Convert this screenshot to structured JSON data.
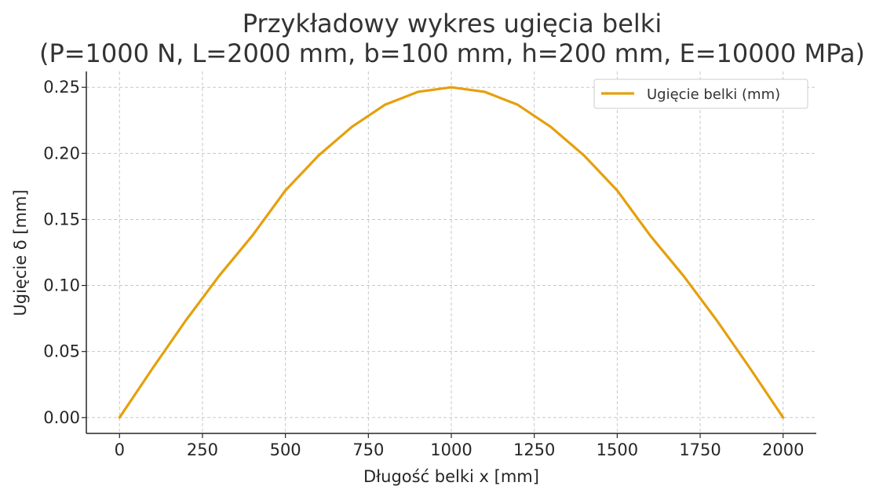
{
  "chart_data": {
    "type": "line",
    "title_lines": [
      "Przykładowy wykres ugięcia belki",
      "(P=1000 N, L=2000 mm, b=100 mm, h=200 mm, E=10000 MPa)"
    ],
    "xlabel": "Długość belki x [mm]",
    "ylabel": "Ugięcie δ [mm]",
    "xlim": [
      -100,
      2100
    ],
    "ylim": [
      -0.012,
      0.262
    ],
    "xticks": [
      0,
      250,
      500,
      750,
      1000,
      1250,
      1500,
      1750,
      2000
    ],
    "xtick_labels": [
      "0",
      "250",
      "500",
      "750",
      "1000",
      "1250",
      "1500",
      "1750",
      "2000"
    ],
    "yticks": [
      0.0,
      0.05,
      0.1,
      0.15,
      0.2,
      0.25
    ],
    "ytick_labels": [
      "0.00",
      "0.05",
      "0.10",
      "0.15",
      "0.20",
      "0.25"
    ],
    "grid": true,
    "legend_position": "top-right",
    "series": [
      {
        "name": "Ugięcie belki (mm)",
        "color": "#e5a00d",
        "x": [
          0,
          100,
          200,
          300,
          400,
          500,
          600,
          700,
          800,
          900,
          1000,
          1100,
          1200,
          1300,
          1400,
          1500,
          1600,
          1700,
          1800,
          1900,
          2000
        ],
        "y": [
          0,
          0.0374,
          0.0736,
          0.1072,
          0.1376,
          0.1719,
          0.1984,
          0.22,
          0.2368,
          0.2466,
          0.25,
          0.2466,
          0.2368,
          0.22,
          0.1984,
          0.1719,
          0.1376,
          0.1072,
          0.0736,
          0.0374,
          0
        ]
      }
    ]
  }
}
